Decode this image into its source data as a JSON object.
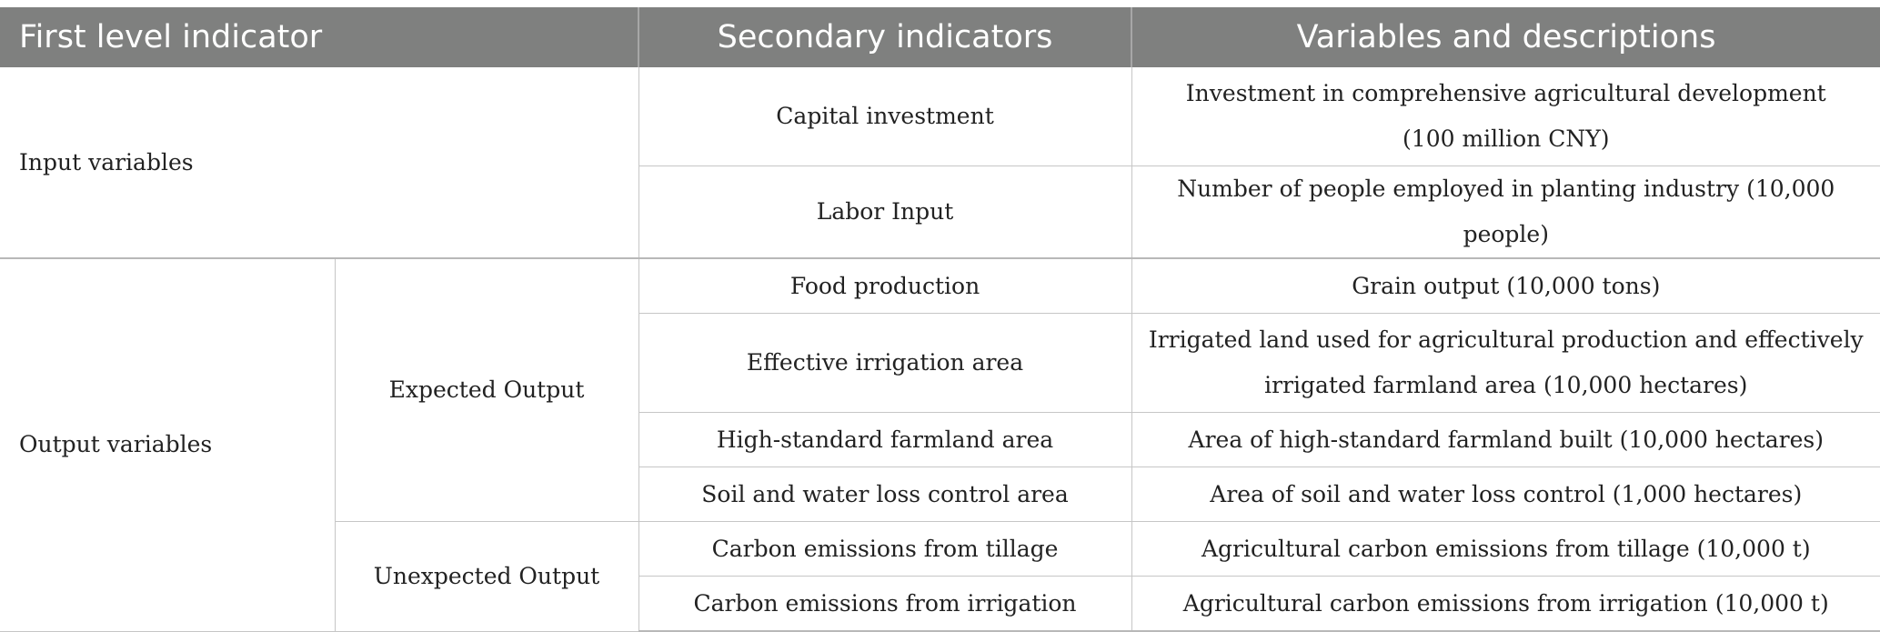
{
  "header": {
    "col1": "First level indicator",
    "col2": "Secondary indicators",
    "col3": "Variables and descriptions"
  },
  "input": {
    "label": "Input variables",
    "rows": [
      {
        "secondary": "Capital investment",
        "desc_line1": "Investment in comprehensive agricultural development",
        "desc_line2": "(100 million CNY)"
      },
      {
        "secondary": "Labor Input",
        "desc_line1": "Number of people employed in planting industry (10,000 people)"
      }
    ]
  },
  "output": {
    "label": "Output variables",
    "expected": {
      "label": "Expected Output",
      "rows": [
        {
          "secondary": "Food production",
          "desc_line1": "Grain output (10,000 tons)"
        },
        {
          "secondary": "Effective irrigation area",
          "desc_line1": "Irrigated land used for agricultural production and effectively",
          "desc_line2": "irrigated farmland area (10,000 hectares)"
        },
        {
          "secondary": "High-standard farmland area",
          "desc_line1": "Area of high-standard farmland built (10,000 hectares)"
        },
        {
          "secondary": "Soil and water loss control area",
          "desc_line1": "Area of soil and water loss control (1,000 hectares)"
        }
      ]
    },
    "unexpected": {
      "label": "Unexpected Output",
      "rows": [
        {
          "secondary": "Carbon emissions from tillage",
          "desc_line1": "Agricultural carbon emissions from tillage (10,000 t)"
        },
        {
          "secondary": "Carbon emissions from irrigation",
          "desc_line1": "Agricultural carbon emissions from irrigation (10,000 t)"
        }
      ]
    }
  }
}
